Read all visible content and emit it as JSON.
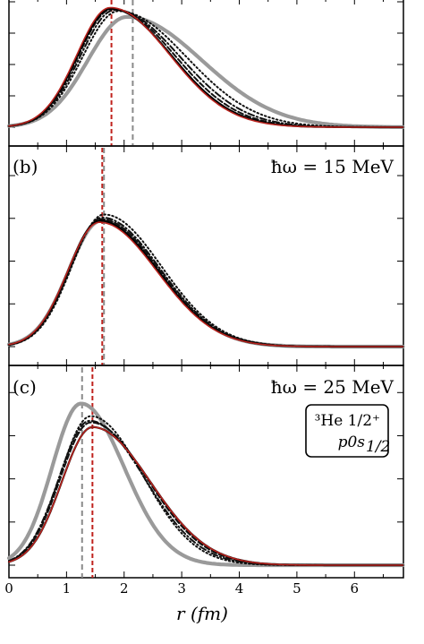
{
  "chart_data": {
    "type": "line",
    "xlabel": "r (fm)",
    "x_ticks": [
      0,
      1,
      2,
      3,
      4,
      5,
      6
    ],
    "xlim": [
      0,
      6.85
    ],
    "panels": [
      {
        "label": "",
        "hw_label": "",
        "ylim": [
          0,
          1.08
        ],
        "vlines": [
          {
            "x": 1.78,
            "style": "dashed-red"
          },
          {
            "x": 2.15,
            "style": "dashed-gray"
          }
        ],
        "series": [
          {
            "style": "gray",
            "peak": 2.05,
            "amp": 0.95,
            "sl": 0.68,
            "sr": 1.3
          },
          {
            "style": "dotted",
            "peak": 1.9,
            "amp": 1.0,
            "sl": 0.62,
            "sr": 1.18
          },
          {
            "style": "dotdash",
            "peak": 1.84,
            "amp": 1.01,
            "sl": 0.6,
            "sr": 1.12
          },
          {
            "style": "dashed",
            "peak": 1.8,
            "amp": 1.02,
            "sl": 0.59,
            "sr": 1.08
          },
          {
            "style": "black",
            "peak": 1.77,
            "amp": 1.02,
            "sl": 0.58,
            "sr": 1.05
          },
          {
            "style": "red",
            "peak": 1.76,
            "amp": 1.03,
            "sl": 0.58,
            "sr": 1.03
          }
        ]
      },
      {
        "label": "(b)",
        "hw_label": "ħω = 15 MeV",
        "ylim": [
          0,
          1.25
        ],
        "vlines": [
          {
            "x": 1.62,
            "style": "dashed-red"
          },
          {
            "x": 1.65,
            "style": "dashed-gray"
          }
        ],
        "series": [
          {
            "style": "gray",
            "peak": 1.6,
            "amp": 0.81,
            "sl": 0.56,
            "sr": 1.0
          },
          {
            "style": "dotted",
            "peak": 1.65,
            "amp": 0.85,
            "sl": 0.56,
            "sr": 1.0
          },
          {
            "style": "dotdash",
            "peak": 1.62,
            "amp": 0.83,
            "sl": 0.56,
            "sr": 1.0
          },
          {
            "style": "dashed",
            "peak": 1.6,
            "amp": 0.82,
            "sl": 0.55,
            "sr": 1.0
          },
          {
            "style": "black",
            "peak": 1.58,
            "amp": 0.81,
            "sl": 0.55,
            "sr": 1.0
          },
          {
            "style": "red",
            "peak": 1.57,
            "amp": 0.8,
            "sl": 0.55,
            "sr": 1.0
          }
        ]
      },
      {
        "label": "(c)",
        "hw_label": "ħω = 25 MeV",
        "box_line1": "³He 1/2⁺",
        "box_line2": "p0s",
        "box_line2_sub": "1/2",
        "ylim": [
          0,
          1.25
        ],
        "vlines": [
          {
            "x": 1.45,
            "style": "dashed-red"
          },
          {
            "x": 1.27,
            "style": "dashed-gray"
          }
        ],
        "series": [
          {
            "style": "gray",
            "peak": 1.25,
            "amp": 1.03,
            "sl": 0.5,
            "sr": 0.75
          },
          {
            "style": "dotted",
            "peak": 1.42,
            "amp": 0.95,
            "sl": 0.53,
            "sr": 0.9
          },
          {
            "style": "dotdash",
            "peak": 1.4,
            "amp": 0.92,
            "sl": 0.53,
            "sr": 0.95
          },
          {
            "style": "dashed",
            "peak": 1.42,
            "amp": 0.91,
            "sl": 0.53,
            "sr": 0.98
          },
          {
            "style": "black",
            "peak": 1.45,
            "amp": 0.88,
            "sl": 0.53,
            "sr": 1.0
          },
          {
            "style": "red",
            "peak": 1.45,
            "amp": 0.88,
            "sl": 0.53,
            "sr": 1.0
          }
        ]
      }
    ]
  }
}
